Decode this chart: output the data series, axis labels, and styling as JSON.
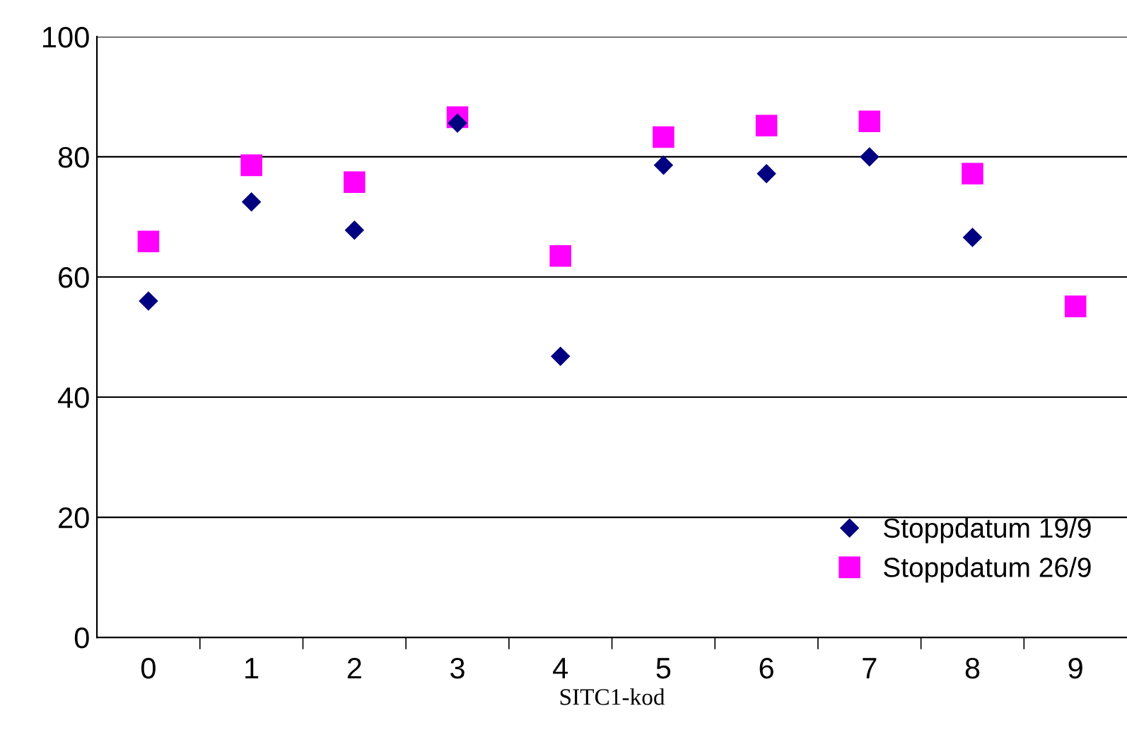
{
  "chart_data": {
    "type": "scatter",
    "xlabel": "SITC1-kod",
    "categories": [
      "0",
      "1",
      "2",
      "3",
      "4",
      "5",
      "6",
      "7",
      "8",
      "9"
    ],
    "series": [
      {
        "name": "Stoppdatum 19/9",
        "color": "#000080",
        "marker": "diamond",
        "values": [
          56.0,
          72.5,
          67.8,
          85.6,
          46.8,
          78.6,
          77.2,
          80.0,
          66.6,
          null
        ]
      },
      {
        "name": "Stoppdatum 26/9",
        "color": "#ff00ff",
        "marker": "square",
        "values": [
          65.9,
          78.6,
          75.8,
          86.6,
          63.5,
          83.3,
          85.2,
          85.9,
          77.2,
          55.1
        ]
      }
    ],
    "ylim": [
      0,
      100
    ],
    "yticks": [
      0,
      20,
      40,
      60,
      80,
      100
    ],
    "grid": "y",
    "legend": "bottom right"
  }
}
